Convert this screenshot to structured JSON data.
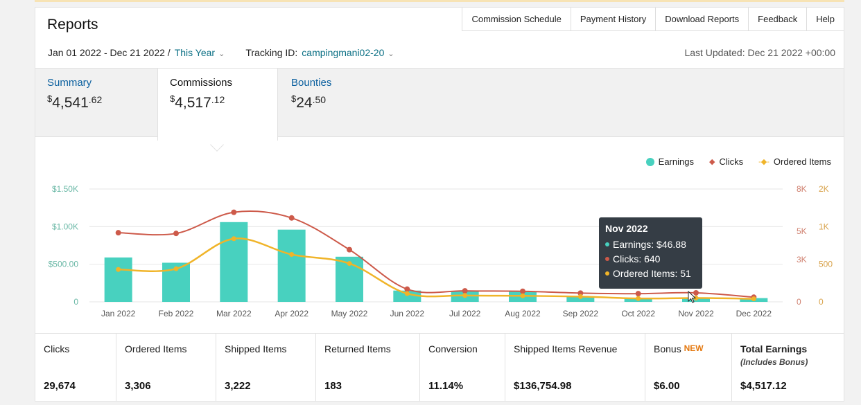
{
  "header": {
    "title": "Reports",
    "links": [
      "Commission Schedule",
      "Payment History",
      "Download Reports",
      "Feedback",
      "Help"
    ],
    "date_range": "Jan 01 2022 - Dec 21 2022 /",
    "period": "This Year",
    "tracking_label": "Tracking ID:",
    "tracking_id": "campingmani02-20",
    "last_updated": "Last Updated: Dec 21 2022 +00:00"
  },
  "tabs": [
    {
      "label": "Summary",
      "currency": "$",
      "whole": "4,541",
      "cents": ".62"
    },
    {
      "label": "Commissions",
      "currency": "$",
      "whole": "4,517",
      "cents": ".12"
    },
    {
      "label": "Bounties",
      "currency": "$",
      "whole": "24",
      "cents": ".50"
    }
  ],
  "legend": {
    "earnings": "Earnings",
    "clicks": "Clicks",
    "ordered": "Ordered Items"
  },
  "tooltip": {
    "title": "Nov 2022",
    "earnings": "Earnings: $46.88",
    "clicks": "Clicks: 640",
    "ordered": "Ordered Items: 51"
  },
  "stats": [
    {
      "label": "Clicks",
      "value": "29,674"
    },
    {
      "label": "Ordered Items",
      "value": "3,306"
    },
    {
      "label": "Shipped Items",
      "value": "3,222"
    },
    {
      "label": "Returned Items",
      "value": "183"
    },
    {
      "label": "Conversion",
      "value": "11.14%"
    },
    {
      "label": "Shipped Items Revenue",
      "value": "$136,754.98"
    },
    {
      "label": "Bonus",
      "badge": "NEW",
      "value": "$6.00"
    },
    {
      "label": "Total Earnings",
      "sublabel": "(Includes Bonus)",
      "value": "$4,517.12"
    }
  ],
  "colors": {
    "earnings": "#48d1bf",
    "clicks": "#cd5a4a",
    "ordered": "#f0b429",
    "link": "#0a6f84"
  },
  "chart_data": {
    "type": "bar",
    "categories": [
      "Jan 2022",
      "Feb 2022",
      "Mar 2022",
      "Apr 2022",
      "May 2022",
      "Jun 2022",
      "Jul 2022",
      "Aug 2022",
      "Sep 2022",
      "Oct 2022",
      "Nov 2022",
      "Dec 2022"
    ],
    "series": [
      {
        "name": "Earnings",
        "axis": "left",
        "type": "bar",
        "values": [
          590,
          520,
          1060,
          960,
          600,
          150,
          140,
          140,
          70,
          40,
          46.88,
          50
        ]
      },
      {
        "name": "Clicks",
        "axis": "right-outer",
        "type": "line",
        "values": [
          4900,
          4850,
          6350,
          5950,
          3700,
          900,
          780,
          750,
          620,
          580,
          640,
          330
        ]
      },
      {
        "name": "Ordered Items",
        "axis": "right-inner",
        "type": "line",
        "values": [
          430,
          440,
          840,
          630,
          510,
          110,
          85,
          80,
          70,
          45,
          51,
          40
        ]
      }
    ],
    "left_axis": {
      "ticks": [
        "0",
        "$500.00",
        "$1.00K",
        "$1.50K"
      ],
      "range": [
        0,
        1500
      ]
    },
    "right_outer_axis": {
      "ticks": [
        "0",
        "3K",
        "5K",
        "8K"
      ],
      "range": [
        0,
        8000
      ]
    },
    "right_inner_axis": {
      "ticks": [
        "0",
        "500",
        "1K",
        "2K"
      ],
      "range": [
        0,
        1500
      ]
    },
    "grid": true,
    "legend_position": "top-right"
  }
}
